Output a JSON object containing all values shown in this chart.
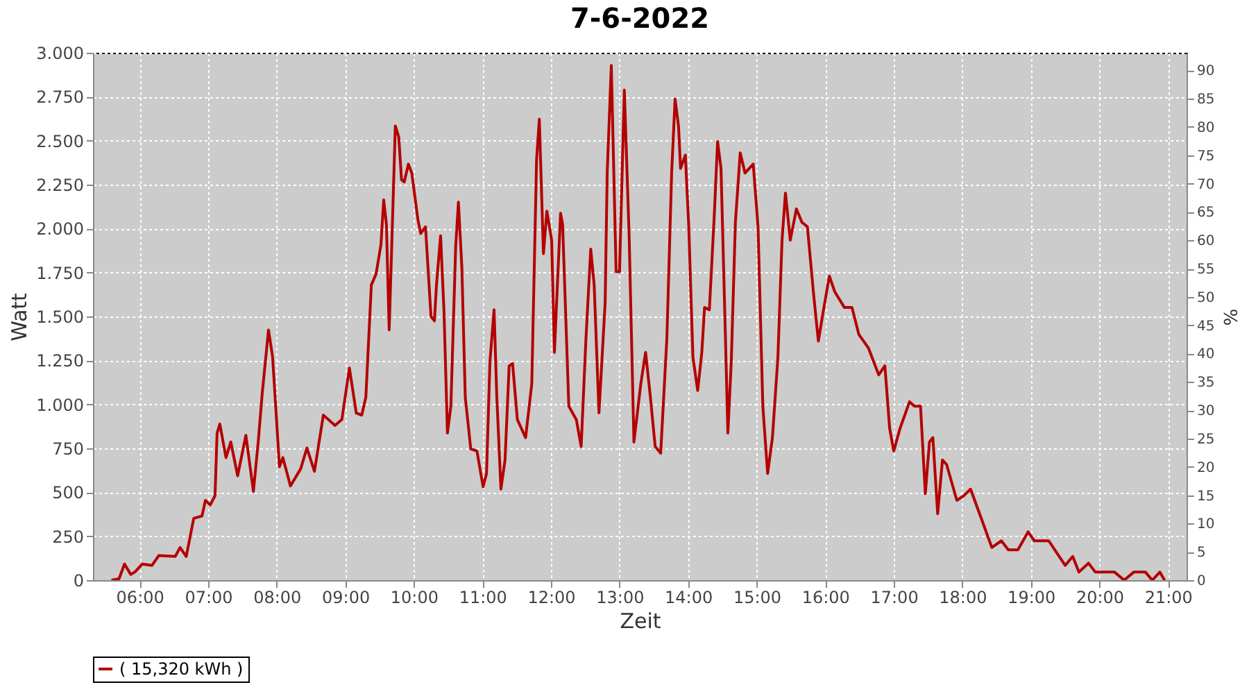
{
  "chart_data": {
    "type": "line",
    "title": "7-6-2022",
    "xlabel": "Zeit",
    "ylabel": "Watt",
    "y2label": "%",
    "x": [
      5.59,
      5.7,
      5.78,
      5.87,
      5.93,
      6.04,
      6.18,
      6.28,
      6.52,
      6.59,
      6.68,
      6.79,
      6.91,
      6.96,
      7.03,
      7.1,
      7.13,
      7.17,
      7.26,
      7.33,
      7.43,
      7.55,
      7.66,
      7.73,
      7.79,
      7.88,
      7.94,
      8.04,
      8.09,
      8.2,
      8.35,
      8.44,
      8.55,
      8.68,
      8.85,
      8.95,
      9.06,
      9.16,
      9.24,
      9.3,
      9.38,
      9.45,
      9.52,
      9.56,
      9.6,
      9.64,
      9.67,
      9.73,
      9.78,
      9.82,
      9.86,
      9.92,
      9.97,
      10.06,
      10.1,
      10.17,
      10.25,
      10.3,
      10.33,
      10.39,
      10.44,
      10.49,
      10.54,
      10.61,
      10.65,
      10.7,
      10.75,
      10.83,
      10.92,
      11.01,
      11.06,
      11.11,
      11.17,
      11.21,
      11.27,
      11.33,
      11.39,
      11.44,
      11.51,
      11.63,
      11.72,
      11.79,
      11.83,
      11.89,
      11.94,
      12.01,
      12.05,
      12.14,
      12.17,
      12.26,
      12.37,
      12.44,
      12.51,
      12.58,
      12.63,
      12.7,
      12.79,
      12.82,
      12.88,
      12.95,
      13.0,
      13.07,
      13.14,
      13.21,
      13.31,
      13.38,
      13.45,
      13.52,
      13.6,
      13.69,
      13.76,
      13.81,
      13.86,
      13.89,
      13.96,
      14.01,
      14.07,
      14.14,
      14.2,
      14.24,
      14.31,
      14.38,
      14.43,
      14.48,
      14.54,
      14.58,
      14.63,
      14.69,
      14.76,
      14.83,
      14.95,
      15.02,
      15.09,
      15.16,
      15.23,
      15.31,
      15.37,
      15.42,
      15.49,
      15.58,
      15.66,
      15.74,
      15.83,
      15.9,
      15.97,
      16.06,
      16.14,
      16.28,
      16.39,
      16.49,
      16.63,
      16.78,
      16.87,
      16.94,
      17.0,
      17.09,
      17.23,
      17.3,
      17.39,
      17.46,
      17.52,
      17.57,
      17.64,
      17.71,
      17.77,
      17.92,
      18.02,
      18.12,
      18.24,
      18.43,
      18.57,
      18.67,
      18.81,
      18.96,
      19.05,
      19.26,
      19.5,
      19.61,
      19.7,
      19.84,
      19.94,
      20.22,
      20.36,
      20.5,
      20.67,
      20.77,
      20.88,
      20.95
    ],
    "series": [
      {
        "name": "( 15,320 kWh )",
        "color": "#b40000",
        "values": [
          0,
          8,
          92,
          33,
          46,
          92,
          84,
          140,
          135,
          186,
          135,
          352,
          365,
          454,
          428,
          480,
          836,
          888,
          697,
          786,
          594,
          824,
          505,
          786,
          1069,
          1423,
          1270,
          645,
          697,
          536,
          634,
          752,
          619,
          939,
          880,
          914,
          1207,
          951,
          939,
          1041,
          1679,
          1743,
          1908,
          2163,
          2023,
          1424,
          1806,
          2584,
          2520,
          2278,
          2265,
          2367,
          2316,
          2048,
          1972,
          2010,
          1500,
          1475,
          1679,
          1959,
          1526,
          837,
          990,
          1895,
          2150,
          1781,
          1041,
          747,
          735,
          531,
          607,
          1245,
          1538,
          1041,
          518,
          684,
          1219,
          1232,
          913,
          811,
          1117,
          2393,
          2622,
          1857,
          2099,
          1934,
          1296,
          2087,
          2023,
          990,
          913,
          760,
          1372,
          1883,
          1679,
          952,
          1577,
          2316,
          2928,
          1755,
          1755,
          2788,
          1959,
          786,
          1117,
          1296,
          1041,
          760,
          722,
          1372,
          2316,
          2737,
          2584,
          2342,
          2418,
          2010,
          1270,
          1079,
          1296,
          1551,
          1538,
          2061,
          2495,
          2342,
          1449,
          837,
          1245,
          2036,
          2431,
          2316,
          2367,
          2010,
          990,
          607,
          811,
          1270,
          1934,
          2202,
          1934,
          2112,
          2036,
          2010,
          1628,
          1360,
          1526,
          1730,
          1640,
          1551,
          1551,
          1398,
          1321,
          1168,
          1219,
          862,
          735,
          862,
          1015,
          990,
          990,
          492,
          786,
          811,
          378,
          684,
          658,
          454,
          480,
          518,
          390,
          186,
          224,
          173,
          173,
          275,
          224,
          224,
          84,
          135,
          46,
          97,
          46,
          46,
          0,
          46,
          46,
          0,
          46,
          0
        ]
      }
    ],
    "xlim": [
      5.32,
      21.27
    ],
    "xticks": [
      {
        "value": 6,
        "label": "06:00"
      },
      {
        "value": 7,
        "label": "07:00"
      },
      {
        "value": 8,
        "label": "08:00"
      },
      {
        "value": 9,
        "label": "09:00"
      },
      {
        "value": 10,
        "label": "10:00"
      },
      {
        "value": 11,
        "label": "11:00"
      },
      {
        "value": 12,
        "label": "12:00"
      },
      {
        "value": 13,
        "label": "13:00"
      },
      {
        "value": 14,
        "label": "14:00"
      },
      {
        "value": 15,
        "label": "15:00"
      },
      {
        "value": 16,
        "label": "16:00"
      },
      {
        "value": 17,
        "label": "17:00"
      },
      {
        "value": 18,
        "label": "18:00"
      },
      {
        "value": 19,
        "label": "19:00"
      },
      {
        "value": 20,
        "label": "20:00"
      },
      {
        "value": 21,
        "label": "21:00"
      }
    ],
    "ylim": [
      0,
      3000
    ],
    "yticks": [
      0,
      250,
      500,
      750,
      {
        "value": 1000,
        "label": "1.000"
      },
      {
        "value": 1250,
        "label": "1.250"
      },
      {
        "value": 1500,
        "label": "1.500"
      },
      {
        "value": 1750,
        "label": "1.750"
      },
      {
        "value": 2000,
        "label": "2.000"
      },
      {
        "value": 2250,
        "label": "2.250"
      },
      {
        "value": 2500,
        "label": "2.500"
      },
      {
        "value": 2750,
        "label": "2.750"
      },
      {
        "value": 3000,
        "label": "3.000"
      }
    ],
    "y2lim": [
      0,
      93.1
    ],
    "y2ticks": [
      0,
      5,
      10,
      15,
      20,
      25,
      30,
      35,
      40,
      45,
      50,
      55,
      60,
      65,
      70,
      75,
      80,
      85,
      90
    ],
    "grid": true,
    "legend": "bottom",
    "line_style": "solid"
  }
}
